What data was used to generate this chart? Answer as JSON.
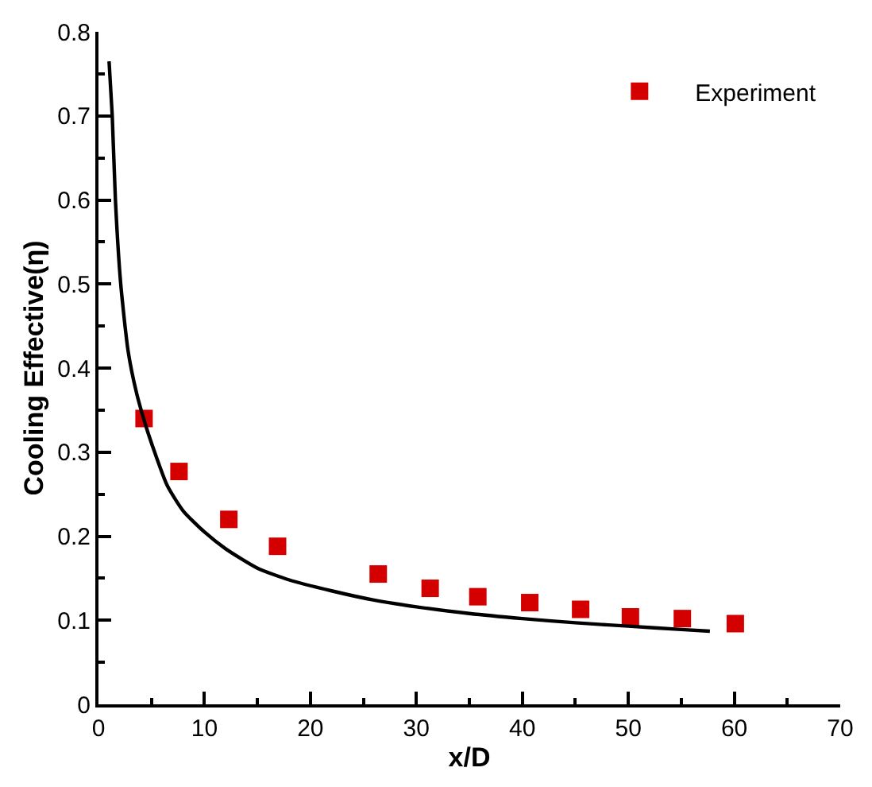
{
  "chart_data": {
    "type": "scatter",
    "xlabel": "x/D",
    "ylabel": "Cooling Effective(η)",
    "xlim": [
      0,
      70
    ],
    "ylim": [
      0,
      0.8
    ],
    "xticks": [
      0,
      10,
      20,
      30,
      40,
      50,
      60,
      70
    ],
    "yticks": [
      0,
      0.1,
      0.2,
      0.3,
      0.4,
      0.5,
      0.6,
      0.7,
      0.8
    ],
    "legend": "top right",
    "series": [
      {
        "name": "Experiment",
        "marker": "square",
        "color": "#d40000",
        "x": [
          4.3,
          7.6,
          12.3,
          16.9,
          26.4,
          31.3,
          35.8,
          40.7,
          45.5,
          50.2,
          55.1,
          60.1
        ],
        "values": [
          0.34,
          0.277,
          0.22,
          0.188,
          0.155,
          0.138,
          0.128,
          0.121,
          0.113,
          0.104,
          0.102,
          0.096
        ]
      },
      {
        "type": "line",
        "color": "#000000",
        "line_style": "solid",
        "x": [
          1,
          1.3,
          1.6,
          2.1,
          2.8,
          3.6,
          4.5,
          5.3,
          6.5,
          8,
          10,
          12,
          15,
          18,
          22,
          26,
          30,
          35,
          40,
          45,
          50,
          55,
          57.7
        ],
        "values": [
          0.765,
          0.7,
          0.6,
          0.5,
          0.42,
          0.37,
          0.33,
          0.3,
          0.26,
          0.23,
          0.205,
          0.185,
          0.162,
          0.148,
          0.135,
          0.124,
          0.116,
          0.108,
          0.102,
          0.097,
          0.093,
          0.089,
          0.087
        ]
      }
    ]
  }
}
